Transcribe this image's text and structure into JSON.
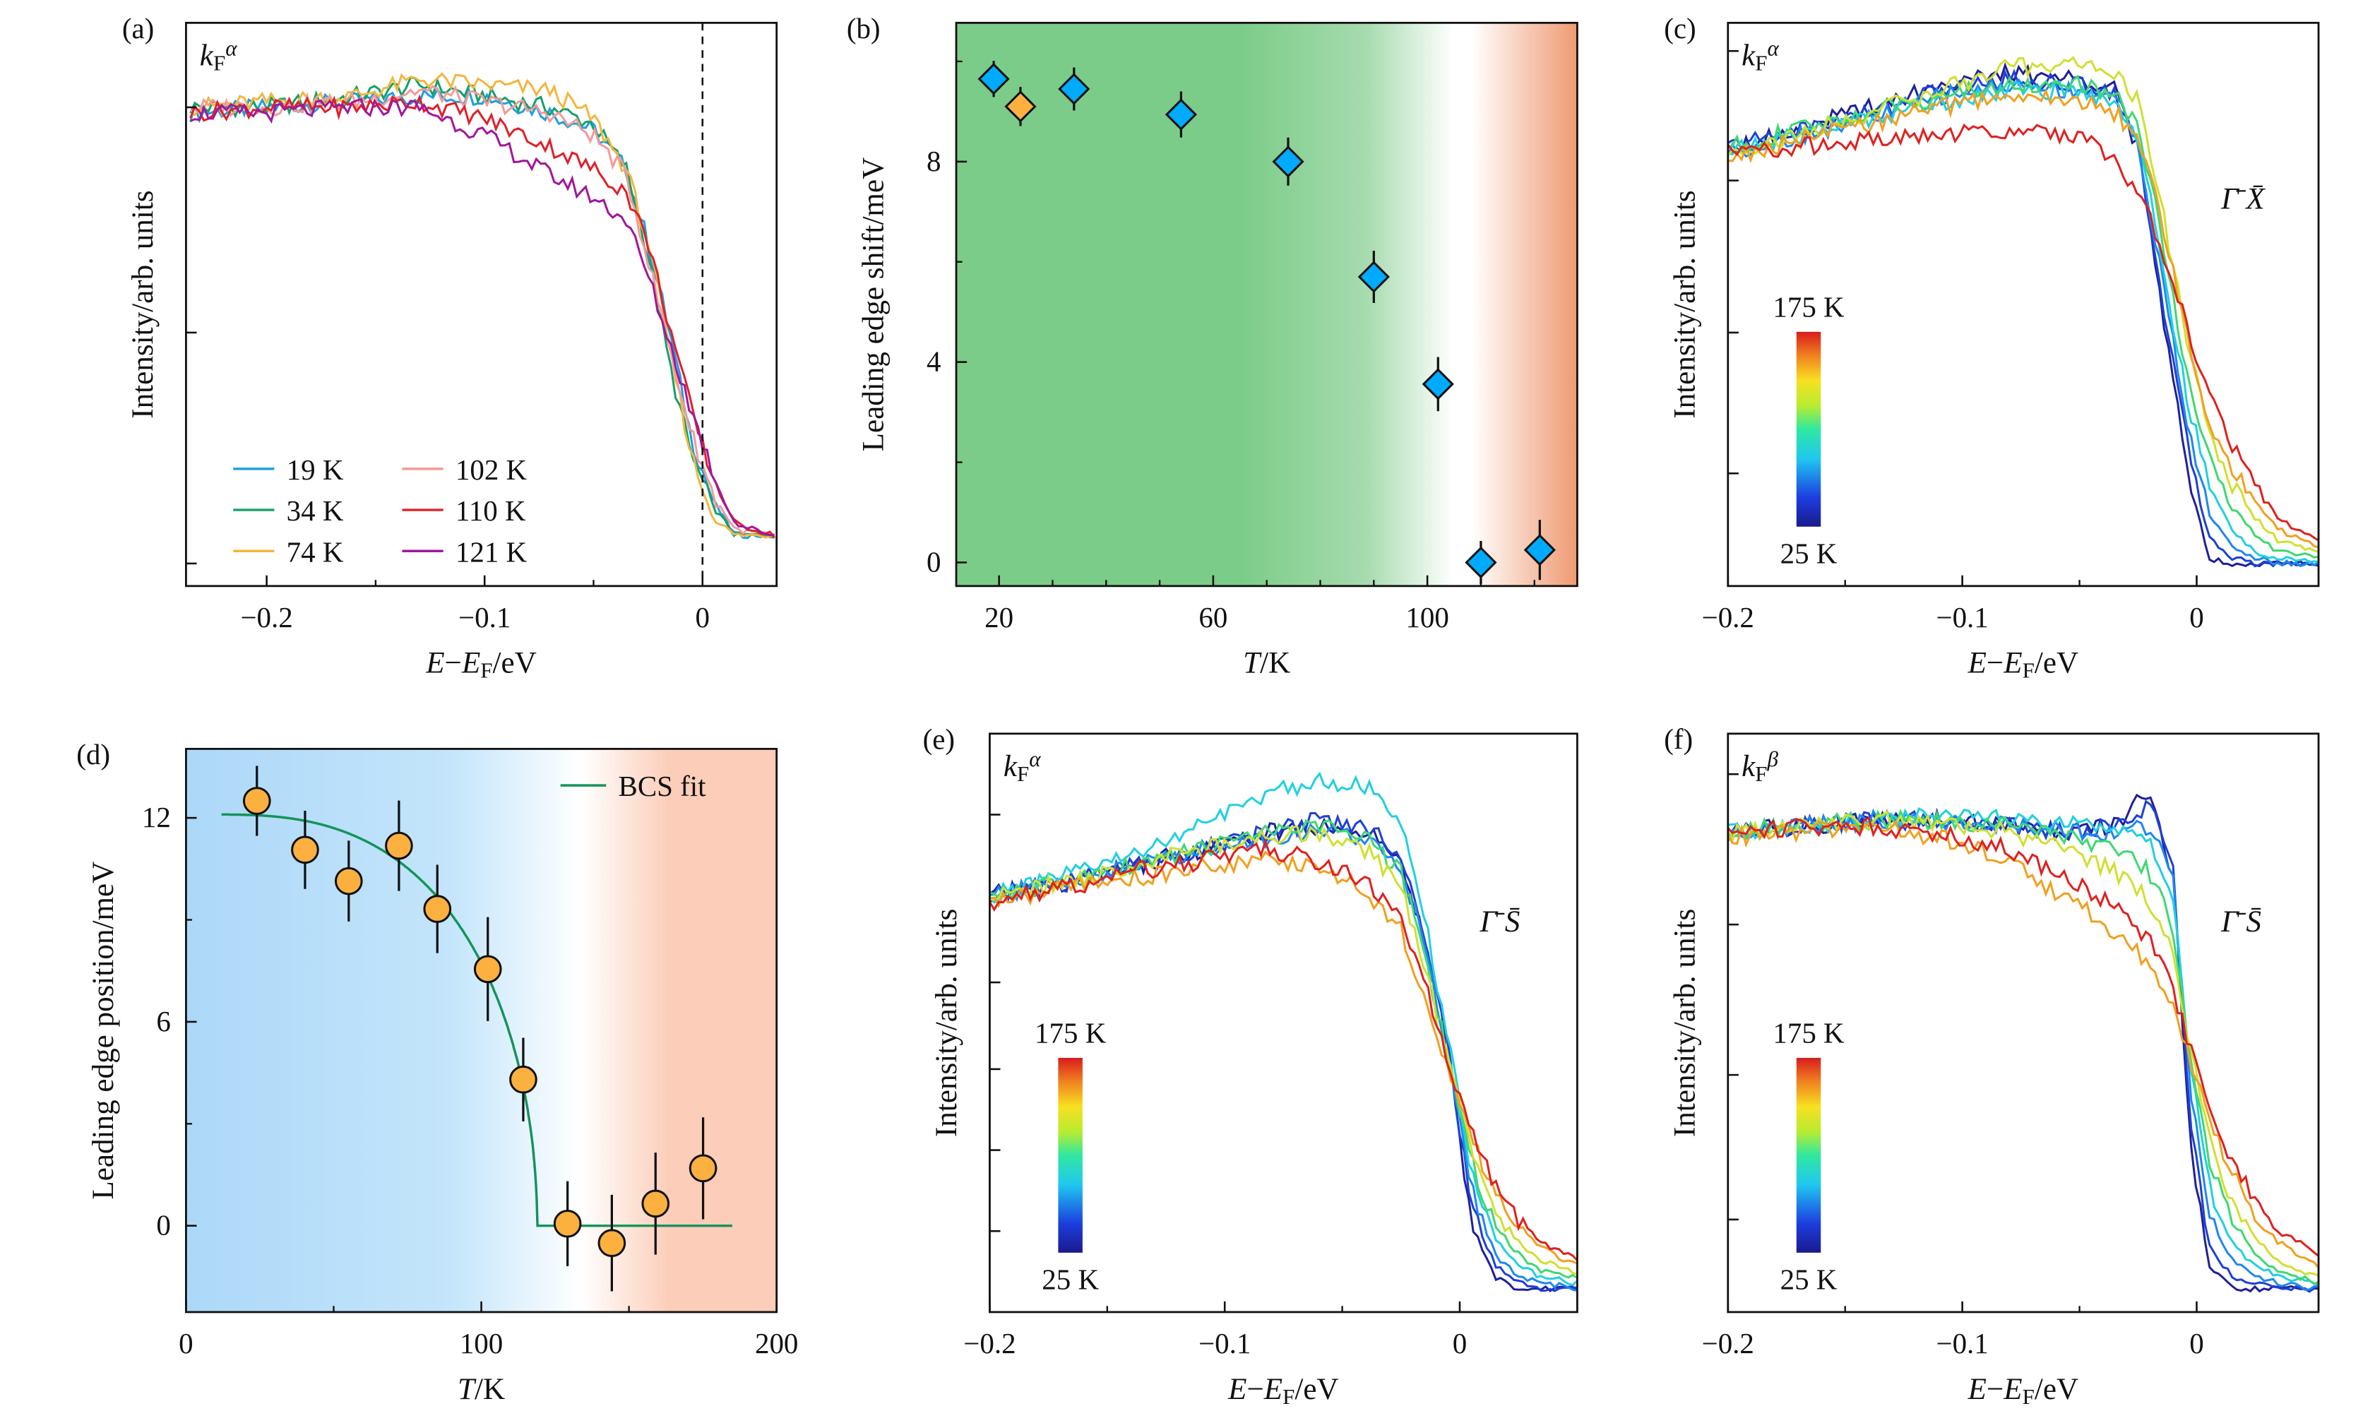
{
  "chart_data": [
    {
      "id": "a",
      "panel_label": "(a)",
      "type": "line",
      "xlabel": "E−E_F/eV",
      "ylabel": "Intensity/arb. units",
      "annotation": "k_F^α",
      "xlim": [
        -0.237,
        0.034
      ],
      "ylim": [
        0,
        100
      ],
      "xticks": [
        -0.2,
        -0.1,
        0
      ],
      "xtick_labels": [
        "−0.2",
        "−0.1",
        "0"
      ],
      "xminor": [
        -0.25,
        -0.15,
        -0.05
      ],
      "yticks": [
        4,
        45,
        85
      ],
      "ytick_labels": [],
      "vline_x": 0,
      "legend": {
        "placement": "bottom-left",
        "columns": 2
      },
      "x": [
        -0.235,
        -0.2,
        -0.16,
        -0.13,
        -0.1,
        -0.07,
        -0.05,
        -0.035,
        -0.025,
        -0.015,
        -0.005,
        0.005,
        0.015,
        0.033
      ],
      "series": [
        {
          "name": "19 K",
          "color": "#1e9fe0",
          "values": [
            84,
            85,
            86,
            87,
            87,
            84,
            81,
            74,
            61,
            45,
            26,
            15,
            9,
            9
          ]
        },
        {
          "name": "34 K",
          "color": "#15a06a",
          "values": [
            85,
            85,
            87,
            89,
            87,
            85,
            82,
            74,
            59,
            39,
            23,
            14,
            9,
            9
          ]
        },
        {
          "name": "74 K",
          "color": "#f3b640",
          "values": [
            85,
            86,
            87,
            90,
            89,
            88,
            83,
            74,
            61,
            42,
            23,
            12,
            9,
            9
          ]
        },
        {
          "name": "102 K",
          "color": "#f39a98",
          "values": [
            85,
            85,
            86,
            88,
            86,
            84,
            80,
            73,
            58,
            42,
            27,
            16,
            10,
            9
          ]
        },
        {
          "name": "110 K",
          "color": "#e0202a",
          "values": [
            84,
            85,
            85,
            86,
            83,
            78,
            74,
            70,
            61,
            46,
            31,
            19,
            11,
            9
          ]
        },
        {
          "name": "121 K",
          "color": "#a0189a",
          "values": [
            84,
            84,
            85,
            85,
            80,
            73,
            69,
            65,
            55,
            43,
            31,
            20,
            11,
            9
          ]
        }
      ]
    },
    {
      "id": "b",
      "panel_label": "(b)",
      "type": "scatter",
      "xlabel": "T/K",
      "ylabel": "Leading edge shift/meV",
      "xlim": [
        12,
        128
      ],
      "ylim": [
        -0.47,
        10.77
      ],
      "xticks": [
        20,
        60,
        100
      ],
      "xtick_labels": [
        "20",
        "60",
        "100"
      ],
      "xminor": [
        30,
        40,
        50,
        70,
        80,
        90,
        110,
        120
      ],
      "yticks": [
        0,
        4,
        8
      ],
      "ytick_labels": [
        "0",
        "4",
        "8"
      ],
      "yminor": [
        2,
        6,
        10
      ],
      "marker": "diamond",
      "background": {
        "left": "#7ccc89",
        "mid": "#ffffff",
        "right": "#ef9a72"
      },
      "points": [
        {
          "x": 19,
          "y": 9.65,
          "err": 0.36,
          "color": "#00aaff"
        },
        {
          "x": 24,
          "y": 9.1,
          "err": 0.39,
          "color": "#fbb040"
        },
        {
          "x": 34,
          "y": 9.45,
          "err": 0.43,
          "color": "#00aaff"
        },
        {
          "x": 54,
          "y": 8.94,
          "err": 0.46,
          "color": "#00aaff"
        },
        {
          "x": 74,
          "y": 8.0,
          "err": 0.48,
          "color": "#00aaff"
        },
        {
          "x": 90,
          "y": 5.7,
          "err": 0.52,
          "color": "#00aaff"
        },
        {
          "x": 102,
          "y": 3.56,
          "err": 0.54,
          "color": "#00aaff"
        },
        {
          "x": 110,
          "y": 0.0,
          "err": 0.43,
          "color": "#00aaff"
        },
        {
          "x": 121,
          "y": 0.25,
          "err": 0.6,
          "color": "#00aaff"
        }
      ]
    },
    {
      "id": "c",
      "panel_label": "(c)",
      "type": "line",
      "xlabel": "E−E_F/eV",
      "ylabel": "Intensity/arb. units",
      "annotation": "k_F^α",
      "direction": "Γ̄ X̄",
      "xlim": [
        -0.2,
        0.052
      ],
      "ylim": [
        0,
        100
      ],
      "xticks": [
        -0.2,
        -0.1,
        0
      ],
      "xtick_labels": [
        "−0.2",
        "−0.1",
        "0"
      ],
      "xminor": [
        -0.15,
        -0.05
      ],
      "yticks": [
        20,
        45,
        72,
        95
      ],
      "ytick_labels": [],
      "colorbar": {
        "top_label": "175 K",
        "bottom_label": "25 K",
        "colormap": "jet"
      },
      "x": [
        -0.2,
        -0.17,
        -0.14,
        -0.11,
        -0.08,
        -0.05,
        -0.035,
        -0.025,
        -0.015,
        -0.005,
        0.005,
        0.015,
        0.025,
        0.035,
        0.052
      ],
      "series": [
        {
          "color": "#20209a",
          "values": [
            78,
            81,
            85,
            89,
            91,
            90,
            89,
            77,
            50,
            23,
            5,
            4,
            4,
            4,
            4
          ]
        },
        {
          "color": "#1e40d8",
          "values": [
            78,
            81,
            84,
            88,
            90,
            89,
            88,
            78,
            52,
            27,
            9,
            5,
            4,
            4,
            4
          ]
        },
        {
          "color": "#1e88ee",
          "values": [
            77,
            80,
            83,
            87,
            89,
            88,
            87,
            79,
            55,
            31,
            13,
            7,
            5,
            4,
            4
          ]
        },
        {
          "color": "#20d0e0",
          "values": [
            77,
            80,
            83,
            86,
            88,
            88,
            86,
            80,
            58,
            35,
            18,
            10,
            6,
            5,
            4
          ]
        },
        {
          "color": "#40d870",
          "values": [
            78,
            81,
            84,
            87,
            89,
            89,
            87,
            82,
            62,
            40,
            23,
            14,
            9,
            6,
            5
          ]
        },
        {
          "color": "#d0e030",
          "values": [
            77,
            80,
            84,
            88,
            92,
            93,
            91,
            86,
            68,
            45,
            28,
            18,
            12,
            8,
            6
          ]
        },
        {
          "color": "#f0a020",
          "values": [
            76,
            79,
            82,
            85,
            87,
            86,
            84,
            80,
            65,
            46,
            30,
            21,
            15,
            10,
            7
          ]
        },
        {
          "color": "#e02020",
          "values": [
            77,
            78,
            79,
            80,
            81,
            80,
            76,
            70,
            60,
            47,
            34,
            25,
            18,
            12,
            8
          ]
        }
      ]
    },
    {
      "id": "d",
      "panel_label": "(d)",
      "type": "scatter",
      "xlabel": "T/K",
      "ylabel": "Leading edge position/meV",
      "xlim": [
        0,
        200
      ],
      "ylim": [
        -2.54,
        14.03
      ],
      "xticks": [
        0,
        100,
        200
      ],
      "xtick_labels": [
        "0",
        "100",
        "200"
      ],
      "xminor": [
        50,
        150
      ],
      "yticks": [
        0,
        6,
        12
      ],
      "ytick_labels": [
        "0",
        "6",
        "12"
      ],
      "yminor": [
        3,
        9
      ],
      "marker": "circle",
      "background": {
        "left": "#acd8f8",
        "mid": "#ffffff",
        "right": "#fccdb8"
      },
      "legend": {
        "placement": "top-right"
      },
      "points": [
        {
          "x": 24,
          "y": 12.5,
          "err": 1.03
        },
        {
          "x": 40.3,
          "y": 11.06,
          "err": 1.15
        },
        {
          "x": 55.1,
          "y": 10.14,
          "err": 1.19
        },
        {
          "x": 72.1,
          "y": 11.18,
          "err": 1.33
        },
        {
          "x": 85.1,
          "y": 9.32,
          "err": 1.3
        },
        {
          "x": 102.2,
          "y": 7.55,
          "err": 1.53
        },
        {
          "x": 114.2,
          "y": 4.3,
          "err": 1.23
        },
        {
          "x": 129.2,
          "y": 0.06,
          "err": 1.25
        },
        {
          "x": 144.2,
          "y": -0.51,
          "err": 1.42
        },
        {
          "x": 159,
          "y": 0.65,
          "err": 1.5
        },
        {
          "x": 175.1,
          "y": 1.69,
          "err": 1.5
        }
      ],
      "point_color": "#fbb040",
      "fit": {
        "name": "BCS fit",
        "color": "#15935a",
        "x_range": [
          12,
          185
        ]
      }
    },
    {
      "id": "e",
      "panel_label": "(e)",
      "type": "line",
      "xlabel": "E−E_F/eV",
      "ylabel": "Intensity/arb. units",
      "annotation": "k_F^α",
      "direction": "Γ̄ S̄",
      "xlim": [
        -0.2,
        0.05
      ],
      "ylim": [
        0,
        100
      ],
      "xticks": [
        -0.2,
        -0.1,
        0
      ],
      "xtick_labels": [
        "−0.2",
        "−0.1",
        "0"
      ],
      "xminor": [
        -0.15,
        -0.05
      ],
      "yticks": [
        14,
        28,
        42,
        57,
        86
      ],
      "ytick_labels": [],
      "colorbar": {
        "top_label": "175 K",
        "bottom_label": "25 K",
        "colormap": "jet"
      },
      "x": [
        -0.2,
        -0.17,
        -0.14,
        -0.11,
        -0.08,
        -0.06,
        -0.04,
        -0.025,
        -0.015,
        -0.005,
        0.005,
        0.015,
        0.025,
        0.035,
        0.05
      ],
      "series": [
        {
          "color": "#20209a",
          "values": [
            72,
            74,
            77,
            80,
            83,
            84,
            83,
            78,
            65,
            45,
            15,
            6,
            4,
            4,
            4
          ]
        },
        {
          "color": "#1e40d8",
          "values": [
            72,
            74,
            77,
            80,
            83,
            85,
            84,
            79,
            66,
            46,
            18,
            8,
            5,
            4,
            4
          ]
        },
        {
          "color": "#1e88ee",
          "values": [
            72,
            74,
            77,
            80,
            82,
            83,
            82,
            77,
            64,
            45,
            21,
            10,
            6,
            5,
            4
          ]
        },
        {
          "color": "#20d0e0",
          "values": [
            72,
            75,
            79,
            84,
            90,
            92,
            91,
            84,
            68,
            47,
            24,
            13,
            8,
            6,
            5
          ]
        },
        {
          "color": "#40d870",
          "values": [
            72,
            74,
            77,
            80,
            83,
            84,
            82,
            76,
            62,
            44,
            26,
            15,
            10,
            7,
            6
          ]
        },
        {
          "color": "#d0e030",
          "values": [
            72,
            74,
            77,
            80,
            82,
            83,
            80,
            74,
            60,
            43,
            28,
            18,
            12,
            9,
            7
          ]
        },
        {
          "color": "#f0a020",
          "values": [
            71,
            73,
            75,
            77,
            78,
            77,
            73,
            66,
            55,
            42,
            30,
            21,
            15,
            11,
            8
          ]
        },
        {
          "color": "#e02020",
          "values": [
            71,
            73,
            76,
            78,
            80,
            78,
            74,
            68,
            57,
            43,
            31,
            22,
            16,
            12,
            9
          ]
        }
      ]
    },
    {
      "id": "f",
      "panel_label": "(f)",
      "type": "line",
      "xlabel": "E−E_F/eV",
      "ylabel": "Intensity/arb. units",
      "annotation": "k_F^β",
      "direction": "Γ̄ S̄",
      "xlim": [
        -0.2,
        0.052
      ],
      "ylim": [
        0,
        100
      ],
      "xticks": [
        -0.2,
        -0.1,
        0
      ],
      "xtick_labels": [
        "−0.2",
        "−0.1",
        "0"
      ],
      "xminor": [
        -0.15,
        -0.05
      ],
      "yticks": [
        16,
        41,
        67,
        93
      ],
      "ytick_labels": [],
      "colorbar": {
        "top_label": "175 K",
        "bottom_label": "25 K",
        "colormap": "jet"
      },
      "x": [
        -0.2,
        -0.17,
        -0.14,
        -0.11,
        -0.08,
        -0.05,
        -0.035,
        -0.02,
        -0.01,
        -0.003,
        0.005,
        0.015,
        0.025,
        0.035,
        0.052
      ],
      "series": [
        {
          "color": "#20209a",
          "values": [
            83,
            84,
            85,
            85,
            84,
            83,
            84,
            90,
            75,
            30,
            8,
            4,
            4,
            4,
            4
          ]
        },
        {
          "color": "#1e40d8",
          "values": [
            83,
            84,
            85,
            85,
            84,
            83,
            84,
            88,
            76,
            35,
            12,
            6,
            5,
            4,
            4
          ]
        },
        {
          "color": "#1e88ee",
          "values": [
            83,
            84,
            85,
            85,
            84,
            83,
            83,
            84,
            74,
            40,
            17,
            9,
            6,
            5,
            4
          ]
        },
        {
          "color": "#20d0e0",
          "values": [
            83,
            84,
            85,
            86,
            85,
            84,
            83,
            82,
            72,
            44,
            22,
            12,
            8,
            6,
            5
          ]
        },
        {
          "color": "#40d870",
          "values": [
            83,
            84,
            85,
            85,
            84,
            82,
            80,
            76,
            66,
            46,
            27,
            16,
            10,
            7,
            5
          ]
        },
        {
          "color": "#d0e030",
          "values": [
            83,
            84,
            85,
            85,
            83,
            79,
            76,
            71,
            62,
            46,
            30,
            19,
            13,
            9,
            6
          ]
        },
        {
          "color": "#f0a020",
          "values": [
            82,
            83,
            84,
            82,
            78,
            70,
            66,
            60,
            53,
            44,
            33,
            24,
            17,
            12,
            8
          ]
        },
        {
          "color": "#e02020",
          "values": [
            83,
            84,
            84,
            83,
            80,
            74,
            70,
            64,
            56,
            46,
            35,
            26,
            19,
            14,
            10
          ]
        }
      ]
    }
  ]
}
